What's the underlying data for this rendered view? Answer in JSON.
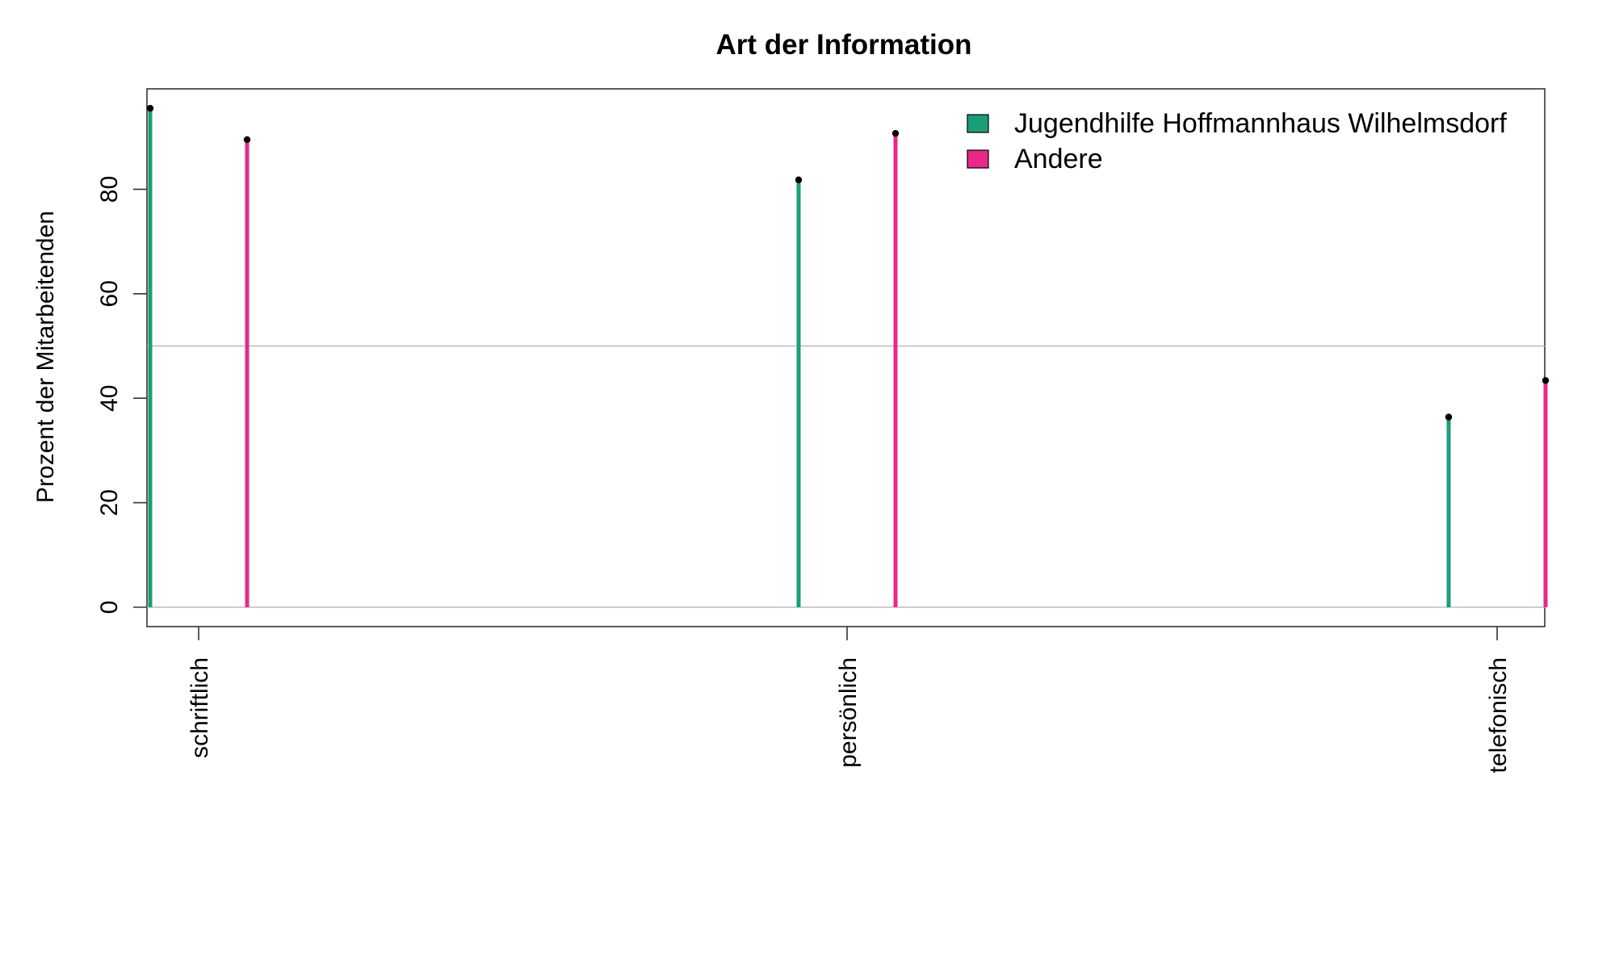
{
  "chart_data": {
    "type": "bar",
    "title": "Art der Information",
    "xlabel": "",
    "ylabel": "Prozent der Mitarbeitenden",
    "categories": [
      "schriftlich",
      "persönlich",
      "telefonisch"
    ],
    "series": [
      {
        "name": "Jugendhilfe Hoffmannhaus Wilhelmsdorf",
        "color": "#1b9e77",
        "values": [
          95.5,
          81.8,
          36.4
        ]
      },
      {
        "name": "Andere",
        "color": "#e7298a",
        "values": [
          89.5,
          90.7,
          43.4
        ]
      }
    ],
    "yticks": [
      0,
      20,
      40,
      60,
      80
    ],
    "ylim": [
      0,
      100
    ],
    "reference_lines": [
      0,
      50
    ],
    "grid": false,
    "legend_position": "top-right",
    "style": "lollipop"
  }
}
